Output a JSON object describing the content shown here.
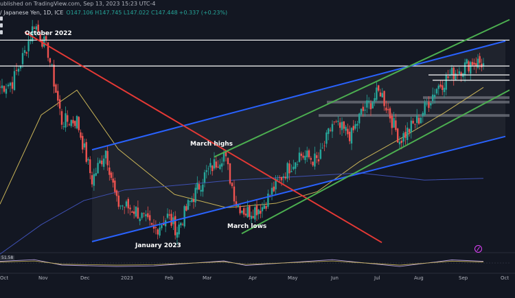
{
  "header": {
    "source_line": "ublished on TradingView.com, Sep 13, 2023 15:23 UTC-4",
    "symbol_line": "/ Japanese Yen, 1D, ICE",
    "ohlc": "O147.106 H147.745 L147.022 C147.448",
    "change": "+0.337 (+0.23%)"
  },
  "annotations": {
    "october_2022": "October 2022",
    "march_highs": "March highs",
    "march_lows": "March lows",
    "january_2023": "January 2023"
  },
  "x_axis": {
    "labels": [
      "Oct",
      "Nov",
      "Dec",
      "2023",
      "Feb",
      "Mar",
      "Apr",
      "May",
      "Jun",
      "Jul",
      "Aug",
      "Sep",
      "Oct"
    ]
  },
  "rsi_panel": {
    "value_label": "51.58"
  },
  "colors": {
    "background": "#131722",
    "up": "#26a69a",
    "down": "#ef5350",
    "channel": "#2962ff",
    "green_channel": "#4caf50",
    "downtrend": "#e53935",
    "ma_short": "#c9b458",
    "ma_long": "#3f51b5",
    "rsi_line": "#b39ddb",
    "rsi_line_2": "#c9b458"
  },
  "chart_data": {
    "type": "candlestick",
    "title": "",
    "xlabel": "",
    "ylabel": "",
    "timeframe": "1D",
    "x_range": [
      "2022-09-26",
      "2023-10-02"
    ],
    "y_range": [
      125.5,
      152.5
    ],
    "grid": false,
    "series": [
      {
        "type": "ohlc",
        "points": [
          {
            "date": "2022-09-26",
            "close": 144.7
          },
          {
            "date": "2022-10-05",
            "close": 145.3
          },
          {
            "date": "2022-10-14",
            "close": 148.6
          },
          {
            "date": "2022-10-21",
            "close": 151.9
          },
          {
            "date": "2022-10-31",
            "close": 148.7
          },
          {
            "date": "2022-11-10",
            "close": 140.9
          },
          {
            "date": "2022-11-21",
            "close": 141.0
          },
          {
            "date": "2022-12-02",
            "close": 134.3
          },
          {
            "date": "2022-12-12",
            "close": 137.7
          },
          {
            "date": "2022-12-20",
            "close": 131.7
          },
          {
            "date": "2023-01-03",
            "close": 130.9
          },
          {
            "date": "2023-01-16",
            "close": 128.6
          },
          {
            "date": "2023-01-26",
            "close": 130.2
          },
          {
            "date": "2023-02-02",
            "close": 128.7
          },
          {
            "date": "2023-02-10",
            "close": 131.4
          },
          {
            "date": "2023-02-22",
            "close": 134.8
          },
          {
            "date": "2023-03-08",
            "close": 137.3
          },
          {
            "date": "2023-03-17",
            "close": 131.8
          },
          {
            "date": "2023-03-24",
            "close": 130.7
          },
          {
            "date": "2023-04-05",
            "close": 131.3
          },
          {
            "date": "2023-04-19",
            "close": 134.7
          },
          {
            "date": "2023-05-02",
            "close": 137.2
          },
          {
            "date": "2023-05-16",
            "close": 136.4
          },
          {
            "date": "2023-05-26",
            "close": 140.6
          },
          {
            "date": "2023-06-09",
            "close": 139.3
          },
          {
            "date": "2023-06-16",
            "close": 141.8
          },
          {
            "date": "2023-06-30",
            "close": 144.3
          },
          {
            "date": "2023-07-14",
            "close": 138.8
          },
          {
            "date": "2023-07-28",
            "close": 141.2
          },
          {
            "date": "2023-08-10",
            "close": 144.7
          },
          {
            "date": "2023-08-21",
            "close": 146.2
          },
          {
            "date": "2023-09-05",
            "close": 147.6
          },
          {
            "date": "2023-09-13",
            "close": 147.4
          }
        ]
      },
      {
        "name": "",
        "type": "moving-average",
        "color": "#c9b458",
        "points": [
          [
            "2022-09-26",
            131.6
          ],
          [
            "2022-10-26",
            141.6
          ],
          [
            "2022-11-21",
            144.4
          ],
          [
            "2022-12-21",
            137.8
          ],
          [
            "2023-01-31",
            132.7
          ],
          [
            "2023-03-10",
            131.2
          ],
          [
            "2023-04-15",
            131.7
          ],
          [
            "2023-05-15",
            133.0
          ],
          [
            "2023-06-15",
            136.4
          ],
          [
            "2023-07-15",
            139.0
          ],
          [
            "2023-08-15",
            141.8
          ],
          [
            "2023-09-13",
            144.7
          ]
        ]
      },
      {
        "name": "",
        "type": "moving-average",
        "color": "#3f51b5",
        "points": [
          [
            "2022-09-26",
            126.0
          ],
          [
            "2022-10-26",
            129.3
          ],
          [
            "2022-11-26",
            132.0
          ],
          [
            "2022-12-26",
            133.2
          ],
          [
            "2023-02-15",
            133.9
          ],
          [
            "2023-03-15",
            134.3
          ],
          [
            "2023-05-01",
            134.7
          ],
          [
            "2023-06-15",
            135.1
          ],
          [
            "2023-08-01",
            134.3
          ],
          [
            "2023-09-13",
            134.5
          ]
        ]
      }
    ],
    "trendlines": [
      {
        "label": "channel-top",
        "from": [
          "2022-12-02",
          137.7
        ],
        "to": [
          "2023-09-29",
          149.9
        ],
        "color": "#2962ff"
      },
      {
        "label": "channel-bottom",
        "from": [
          "2022-12-02",
          127.4
        ],
        "to": [
          "2023-09-29",
          139.2
        ],
        "color": "#2962ff"
      },
      {
        "label": "downtrend",
        "from": [
          "2022-10-14",
          150.9
        ],
        "to": [
          "2023-07-01",
          127.3
        ],
        "color": "#e53935"
      },
      {
        "label": "green-upper",
        "from": [
          "2023-03-01",
          136.9
        ],
        "to": [
          "2023-10-02",
          152.3
        ],
        "color": "#4caf50"
      },
      {
        "label": "green-lower",
        "from": [
          "2023-03-21",
          128.3
        ],
        "to": [
          "2023-10-02",
          144.4
        ],
        "color": "#4caf50"
      }
    ],
    "horizontal_levels": [
      {
        "value": 150.0,
        "from": "2022-09-26",
        "to": "2023-10-02",
        "color": "#ffffff"
      },
      {
        "value": 147.1,
        "from": "2022-09-26",
        "to": "2023-10-02",
        "color": "#ffffff"
      },
      {
        "value": 146.1,
        "from": "2023-08-04",
        "to": "2023-10-02",
        "color": "#ffffff"
      },
      {
        "value": 145.5,
        "from": "2023-08-07",
        "to": "2023-10-02",
        "color": "#ffffff"
      }
    ],
    "zones": [
      {
        "from_date": "2023-07-31",
        "to_date": "2023-10-02",
        "low": 143.4,
        "high": 143.7
      },
      {
        "from_date": "2023-05-22",
        "to_date": "2023-10-02",
        "low": 142.9,
        "high": 143.2
      },
      {
        "from_date": "2023-05-16",
        "to_date": "2023-10-02",
        "low": 141.4,
        "high": 141.7
      }
    ],
    "rsi": {
      "value": 51.58,
      "points": [
        [
          "2022-09-26",
          58
        ],
        [
          "2022-10-21",
          66
        ],
        [
          "2022-11-10",
          40
        ],
        [
          "2022-12-20",
          33
        ],
        [
          "2023-01-16",
          36
        ],
        [
          "2023-03-08",
          60
        ],
        [
          "2023-03-24",
          38
        ],
        [
          "2023-05-26",
          66
        ],
        [
          "2023-07-14",
          33
        ],
        [
          "2023-08-21",
          65
        ],
        [
          "2023-09-13",
          58
        ]
      ]
    }
  }
}
